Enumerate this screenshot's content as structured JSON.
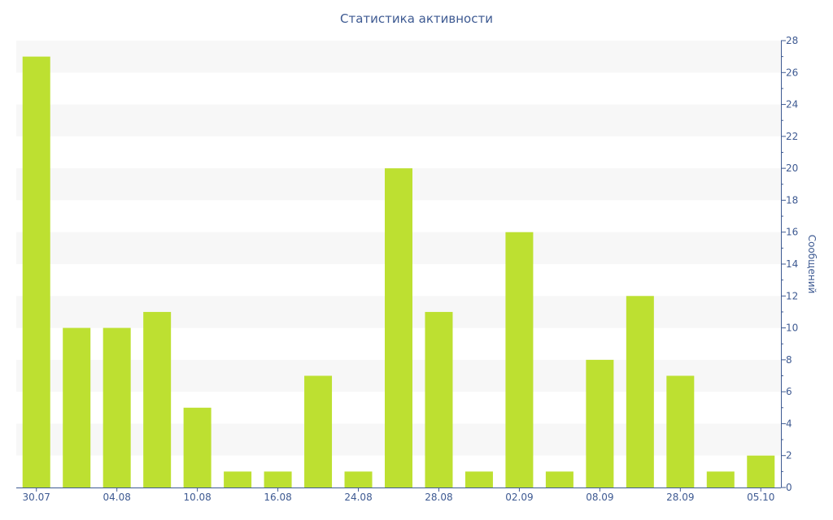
{
  "chart_data": {
    "type": "bar",
    "title": "Статистика активности",
    "ylabel": "Сообщений",
    "y_axis_side": "right",
    "ylim": [
      0,
      28
    ],
    "yticks": [
      0,
      2,
      4,
      6,
      8,
      10,
      12,
      14,
      16,
      18,
      20,
      22,
      24,
      26,
      28
    ],
    "grid": "alternating horizontal bands",
    "legend": "none",
    "bar_color": "#bde031",
    "band_color": "#f7f7f7",
    "axis_color": "#3e5a92",
    "categories": [
      "30.07",
      "",
      "04.08",
      "",
      "10.08",
      "",
      "16.08",
      "",
      "24.08",
      "",
      "28.08",
      "",
      "02.09",
      "",
      "08.09",
      "",
      "28.09",
      "",
      "05.10"
    ],
    "values": [
      27,
      10,
      10,
      11,
      5,
      1,
      1,
      7,
      1,
      20,
      11,
      1,
      16,
      1,
      8,
      12,
      7,
      1,
      2
    ]
  }
}
